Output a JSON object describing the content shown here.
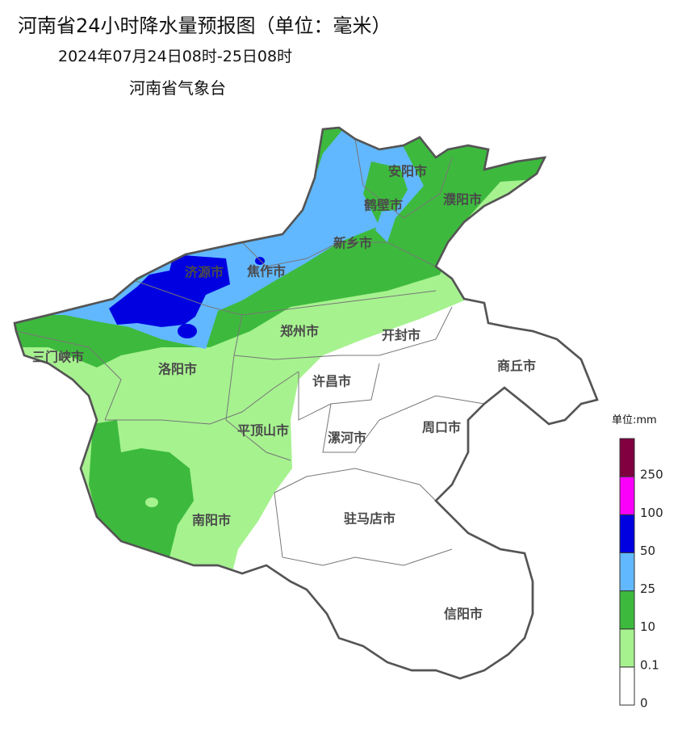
{
  "header": {
    "title": "河南省24小时降水量预报图（单位：毫米）",
    "subtitle": "2024年07月24日08时-25日08时",
    "issuer": "河南省气象台"
  },
  "cities": [
    "安阳市",
    "鹤壁市",
    "濮阳市",
    "新乡市",
    "济源市",
    "焦作市",
    "三门峡市",
    "郑州市",
    "开封市",
    "商丘市",
    "洛阳市",
    "许昌市",
    "平顶山市",
    "漯河市",
    "周口市",
    "南阳市",
    "驻马店市",
    "信阳市"
  ],
  "legend": {
    "unit": "单位:mm",
    "ticks": [
      0,
      0.1,
      10,
      25,
      50,
      100,
      250
    ],
    "colors": [
      "#ffffff",
      "#a6f28f",
      "#3dba3d",
      "#61b8ff",
      "#0000e1",
      "#fa00fa",
      "#800040"
    ]
  }
}
